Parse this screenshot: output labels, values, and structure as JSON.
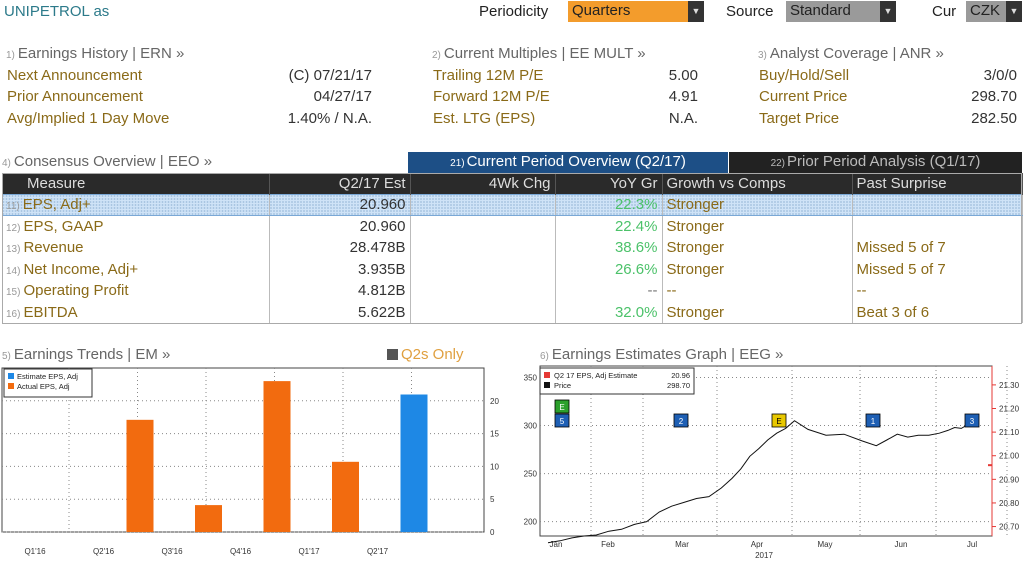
{
  "header": {
    "title": "UNIPETROL as",
    "periodicity_label": "Periodicity",
    "periodicity_value": "Quarters",
    "source_label": "Source",
    "source_value": "Standard",
    "cur_label": "Cur",
    "cur_value": "CZK"
  },
  "earnings_history": {
    "num": "1)",
    "title": "Earnings History | ERN »",
    "rows": [
      {
        "label": "Next Announcement",
        "value": "(C)  07/21/17"
      },
      {
        "label": "Prior Announcement",
        "value": "04/27/17"
      },
      {
        "label": "Avg/Implied 1 Day Move",
        "value": "1.40% / N.A."
      }
    ]
  },
  "current_multiples": {
    "num": "2)",
    "title": "Current Multiples | EE MULT »",
    "rows": [
      {
        "label": "Trailing 12M P/E",
        "value": "5.00"
      },
      {
        "label": "Forward 12M P/E",
        "value": "4.91"
      },
      {
        "label": "Est. LTG (EPS)",
        "value": "N.A."
      }
    ]
  },
  "analyst_coverage": {
    "num": "3)",
    "title": "Analyst Coverage | ANR »",
    "rows": [
      {
        "label": "Buy/Hold/Sell",
        "value": "3/0/0"
      },
      {
        "label": "Current Price",
        "value": "298.70"
      },
      {
        "label": "Target Price",
        "value": "282.50"
      }
    ]
  },
  "consensus": {
    "num": "4)",
    "title": "Consensus Overview | EEO »",
    "tab_active_num": "21)",
    "tab_active": "Current Period Overview (Q2/17)",
    "tab_inactive_num": "22)",
    "tab_inactive": "Prior Period Analysis (Q1/17)",
    "columns": [
      "Measure",
      "Q2/17 Est",
      "4Wk Chg",
      "YoY Gr",
      "Growth vs Comps",
      "Past Surprise"
    ],
    "rows": [
      {
        "num": "11)",
        "measure": "EPS, Adj+",
        "est": "20.960",
        "chg": "",
        "yoy": "22.3%",
        "growth": "Stronger",
        "surprise": ""
      },
      {
        "num": "12)",
        "measure": "EPS, GAAP",
        "est": "20.960",
        "chg": "",
        "yoy": "22.4%",
        "growth": "Stronger",
        "surprise": ""
      },
      {
        "num": "13)",
        "measure": "Revenue",
        "est": "28.478B",
        "chg": "",
        "yoy": "38.6%",
        "growth": "Stronger",
        "surprise": "Missed 5 of 7"
      },
      {
        "num": "14)",
        "measure": "Net Income, Adj+",
        "est": "3.935B",
        "chg": "",
        "yoy": "26.6%",
        "growth": "Stronger",
        "surprise": "Missed 5 of 7"
      },
      {
        "num": "15)",
        "measure": "Operating Profit",
        "est": "4.812B",
        "chg": "",
        "yoy": "--",
        "growth": "--",
        "surprise": "--"
      },
      {
        "num": "16)",
        "measure": "EBITDA",
        "est": "5.622B",
        "chg": "",
        "yoy": "32.0%",
        "growth": "Stronger",
        "surprise": "Beat 3 of 6"
      }
    ]
  },
  "earnings_trends": {
    "num": "5)",
    "title": "Earnings Trends | EM »",
    "toggle_label": "Q2s Only",
    "chart_data": {
      "type": "bar",
      "categories": [
        "Q1'16",
        "Q2'16",
        "Q3'16",
        "Q4'16",
        "Q1'17",
        "Q2'17"
      ],
      "series": [
        {
          "name": "Estimate EPS, Adj",
          "color": "#1e88e5",
          "values": [
            null,
            null,
            null,
            null,
            null,
            20.96
          ]
        },
        {
          "name": "Actual EPS, Adj",
          "color": "#f26b0f",
          "values": [
            null,
            17.1,
            4.1,
            23.0,
            10.7,
            null
          ]
        }
      ],
      "ylim": [
        0,
        25
      ],
      "yticks": [
        "0",
        "5",
        "10",
        "15",
        "20"
      ],
      "legend": "top-left",
      "grid": true
    }
  },
  "estimates_graph": {
    "num": "6)",
    "title": "Earnings Estimates Graph | EEG »",
    "legend": [
      {
        "label": "Q2 17 EPS, Adj Estimate",
        "value": "20.96",
        "color": "#e53935"
      },
      {
        "label": "Price",
        "value": "298.70",
        "color": "#111111"
      }
    ],
    "chart_data": {
      "type": "line",
      "x_labels": [
        "Jan",
        "Feb",
        "Mar",
        "Apr",
        "May",
        "Jun",
        "Jul"
      ],
      "x_sub_label": "2017",
      "left_axis": {
        "ticks": [
          "200",
          "250",
          "300",
          "350"
        ],
        "ylim": [
          185,
          362
        ]
      },
      "right_axis": {
        "ticks": [
          "20.70",
          "20.80",
          "20.90",
          "21.00",
          "21.10",
          "21.20",
          "21.30"
        ],
        "ylim": [
          20.66,
          21.38
        ]
      },
      "series": [
        {
          "name": "Price",
          "color": "#111111",
          "points": [
            [
              "Jan",
              178
            ],
            [
              "Jan",
              180
            ],
            [
              "Jan",
              183
            ],
            [
              "Jan",
              185
            ],
            [
              "Feb",
              186
            ],
            [
              "Feb",
              190
            ],
            [
              "Feb",
              192
            ],
            [
              "Feb",
              197
            ],
            [
              "Feb",
              200
            ],
            [
              "Mar",
              210
            ],
            [
              "Mar",
              216
            ],
            [
              "Mar",
              220
            ],
            [
              "Mar",
              224
            ],
            [
              "Mar",
              226
            ],
            [
              "Mar",
              235
            ],
            [
              "Apr",
              245
            ],
            [
              "Apr",
              255
            ],
            [
              "Apr",
              268
            ],
            [
              "Apr",
              276
            ],
            [
              "Apr",
              285
            ],
            [
              "Apr",
              292
            ],
            [
              "Apr",
              297
            ],
            [
              "Apr",
              305
            ],
            [
              "May",
              296
            ],
            [
              "May",
              290
            ],
            [
              "May",
              291
            ],
            [
              "May",
              284
            ],
            [
              "Jun",
              279
            ],
            [
              "Jun",
              285
            ],
            [
              "Jun",
              291
            ],
            [
              "Jun",
              288
            ],
            [
              "Jun",
              290
            ],
            [
              "Jun",
              290
            ],
            [
              "Jun",
              292
            ],
            [
              "Jul",
              295
            ],
            [
              "Jul",
              298
            ],
            [
              "Jul",
              297
            ],
            [
              "Jul",
              301
            ],
            [
              "Jul",
              299
            ]
          ]
        },
        {
          "name": "Q2 17 EPS, Adj Estimate",
          "color": "#e53935",
          "points": [
            [
              "Jul",
              20.96
            ]
          ]
        }
      ],
      "event_markers": [
        {
          "label": "E",
          "color": "#2ca02c",
          "x": "Jan"
        },
        {
          "label": "5",
          "color": "#1e5fb4",
          "x": "Jan"
        },
        {
          "label": "2",
          "color": "#1e5fb4",
          "x": "Mar"
        },
        {
          "label": "E",
          "color": "#e8c800",
          "x": "Apr"
        },
        {
          "label": "1",
          "color": "#1e5fb4",
          "x": "Jun"
        },
        {
          "label": "3",
          "color": "#1e5fb4",
          "x": "Jul"
        }
      ]
    }
  }
}
